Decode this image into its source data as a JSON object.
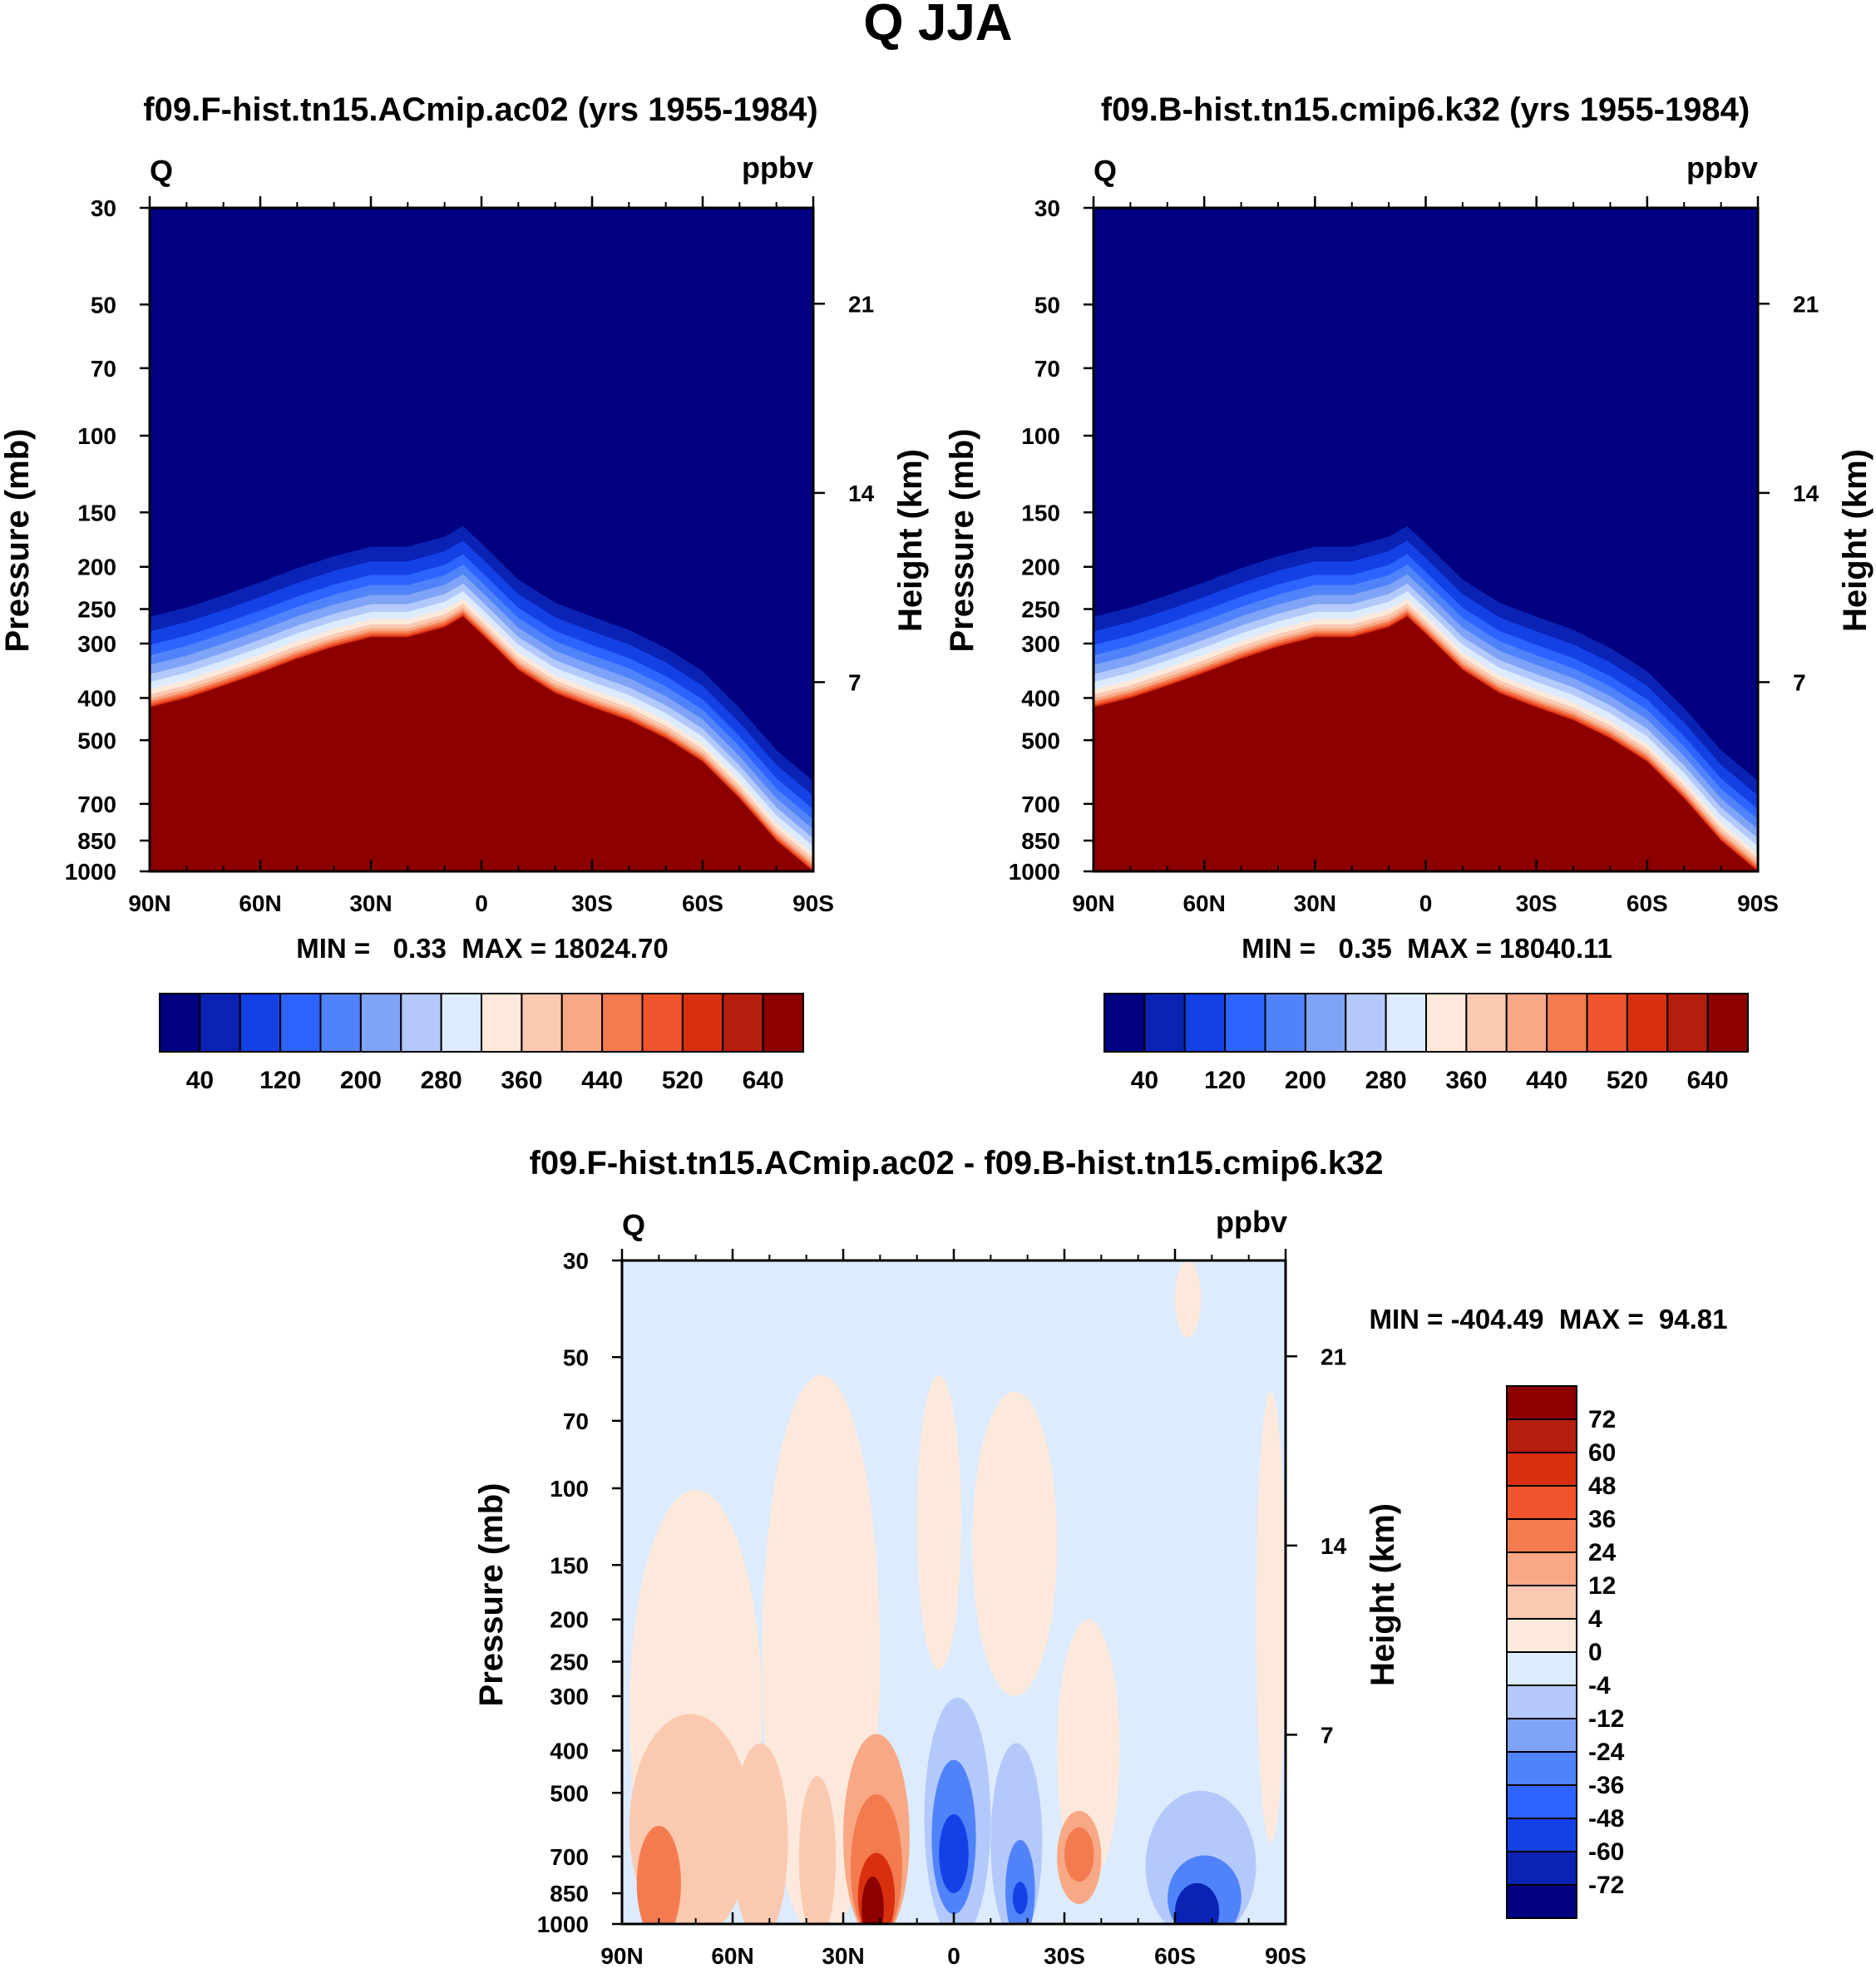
{
  "figure": {
    "title": "Q JJA"
  },
  "colors": {
    "abs_scale": [
      "#000080",
      "#0a23b4",
      "#1441e6",
      "#2d64ff",
      "#5083fa",
      "#7fa3f6",
      "#b3c9fb",
      "#dcebfd",
      "#fde9db",
      "#fbc9b0",
      "#f8a885",
      "#f47b50",
      "#f0542d",
      "#d8300f",
      "#b51d0d",
      "#8c0000"
    ],
    "diff_scale": [
      "#000080",
      "#0a23b4",
      "#1441e6",
      "#2d64ff",
      "#5083fa",
      "#7fa3f6",
      "#b3c9fb",
      "#dcebfd",
      "#fde9db",
      "#fbc9b0",
      "#f8a885",
      "#f47b50",
      "#f0542d",
      "#d8300f",
      "#b51d0d",
      "#8c0000"
    ]
  },
  "chart_data": [
    {
      "type": "heatmap",
      "title": "f09.F-hist.tn15.ACmip.ac02 (yrs 1955-1984)",
      "left_label": "Q",
      "right_label": "ppbv",
      "ylabel": "Pressure (mb)",
      "ylabel_right": "Height (km)",
      "x_ticks": [
        "90N",
        "60N",
        "30N",
        "0",
        "30S",
        "60S",
        "90S"
      ],
      "x_values": [
        90,
        60,
        30,
        0,
        -30,
        -60,
        -90
      ],
      "y_ticks": [
        "30",
        "50",
        "70",
        "100",
        "150",
        "200",
        "250",
        "300",
        "400",
        "500",
        "700",
        "850",
        "1000"
      ],
      "y_values": [
        30,
        50,
        70,
        100,
        150,
        200,
        250,
        300,
        400,
        500,
        700,
        850,
        1000
      ],
      "y_right_ticks": [
        "21",
        "14",
        "7"
      ],
      "y_right_values": [
        21,
        14,
        7
      ],
      "ylim": [
        30,
        1000
      ],
      "xlim": [
        90,
        -90
      ],
      "stats": "MIN =   0.33  MAX = 18024.70",
      "min": 0.33,
      "max": 18024.7,
      "colorbar_labels": [
        "40",
        "120",
        "200",
        "280",
        "360",
        "440",
        "520",
        "640"
      ],
      "colorbar_levels": [
        0,
        40,
        80,
        120,
        160,
        200,
        240,
        280,
        320,
        360,
        400,
        440,
        480,
        520,
        560,
        640
      ],
      "interface_pressure": {
        "latitude": [
          90,
          80,
          70,
          60,
          50,
          40,
          30,
          20,
          10,
          5,
          0,
          -10,
          -20,
          -30,
          -40,
          -50,
          -60,
          -70,
          -80,
          -90
        ],
        "pressure_mb": [
          420,
          400,
          375,
          350,
          325,
          305,
          290,
          290,
          275,
          260,
          285,
          345,
          390,
          420,
          450,
          495,
          560,
          680,
          850,
          1000
        ]
      }
    },
    {
      "type": "heatmap",
      "title": "f09.B-hist.tn15.cmip6.k32 (yrs 1955-1984)",
      "left_label": "Q",
      "right_label": "ppbv",
      "ylabel": "Pressure (mb)",
      "ylabel_right": "Height (km)",
      "x_ticks": [
        "90N",
        "60N",
        "30N",
        "0",
        "30S",
        "60S",
        "90S"
      ],
      "x_values": [
        90,
        60,
        30,
        0,
        -30,
        -60,
        -90
      ],
      "y_ticks": [
        "30",
        "50",
        "70",
        "100",
        "150",
        "200",
        "250",
        "300",
        "400",
        "500",
        "700",
        "850",
        "1000"
      ],
      "y_values": [
        30,
        50,
        70,
        100,
        150,
        200,
        250,
        300,
        400,
        500,
        700,
        850,
        1000
      ],
      "y_right_ticks": [
        "21",
        "14",
        "7"
      ],
      "y_right_values": [
        21,
        14,
        7
      ],
      "ylim": [
        30,
        1000
      ],
      "xlim": [
        90,
        -90
      ],
      "stats": "MIN =   0.35  MAX = 18040.11",
      "min": 0.35,
      "max": 18040.11,
      "colorbar_labels": [
        "40",
        "120",
        "200",
        "280",
        "360",
        "440",
        "520",
        "640"
      ],
      "colorbar_levels": [
        0,
        40,
        80,
        120,
        160,
        200,
        240,
        280,
        320,
        360,
        400,
        440,
        480,
        520,
        560,
        640
      ],
      "interface_pressure": {
        "latitude": [
          90,
          80,
          70,
          60,
          50,
          40,
          30,
          20,
          10,
          5,
          0,
          -10,
          -20,
          -30,
          -40,
          -50,
          -60,
          -70,
          -80,
          -90
        ],
        "pressure_mb": [
          420,
          400,
          375,
          350,
          325,
          305,
          290,
          290,
          275,
          260,
          285,
          345,
          390,
          420,
          450,
          495,
          560,
          680,
          850,
          1000
        ]
      }
    },
    {
      "type": "heatmap",
      "title": "f09.F-hist.tn15.ACmip.ac02 - f09.B-hist.tn15.cmip6.k32",
      "left_label": "Q",
      "right_label": "ppbv",
      "ylabel": "Pressure (mb)",
      "ylabel_right": "Height (km)",
      "x_ticks": [
        "90N",
        "60N",
        "30N",
        "0",
        "30S",
        "60S",
        "90S"
      ],
      "x_values": [
        90,
        60,
        30,
        0,
        -30,
        -60,
        -90
      ],
      "y_ticks": [
        "30",
        "50",
        "70",
        "100",
        "150",
        "200",
        "250",
        "300",
        "400",
        "500",
        "700",
        "850",
        "1000"
      ],
      "y_values": [
        30,
        50,
        70,
        100,
        150,
        200,
        250,
        300,
        400,
        500,
        700,
        850,
        1000
      ],
      "y_right_ticks": [
        "21",
        "14",
        "7"
      ],
      "y_right_values": [
        21,
        14,
        7
      ],
      "ylim": [
        30,
        1000
      ],
      "xlim": [
        90,
        -90
      ],
      "stats": "MIN = -404.49  MAX =  94.81",
      "min": -404.49,
      "max": 94.81,
      "colorbar_labels": [
        "72",
        "60",
        "48",
        "36",
        "24",
        "12",
        "4",
        "0",
        "-4",
        "-12",
        "-24",
        "-36",
        "-48",
        "-60",
        "-72"
      ],
      "background_value": -2,
      "regions": [
        {
          "lat": [
            88,
            52
          ],
          "p": [
            110,
            1000
          ],
          "value": 2
        },
        {
          "lat": [
            52,
            20
          ],
          "p": [
            60,
            1000
          ],
          "value": 2
        },
        {
          "lat": [
            10,
            -2
          ],
          "p": [
            55,
            260
          ],
          "value": 2
        },
        {
          "lat": [
            -5,
            -28
          ],
          "p": [
            60,
            300
          ],
          "value": 2
        },
        {
          "lat": [
            -28,
            -45
          ],
          "p": [
            200,
            800
          ],
          "value": 2
        },
        {
          "lat": [
            -82,
            -90
          ],
          "p": [
            60,
            650
          ],
          "value": 2
        },
        {
          "lat": [
            -60,
            -67
          ],
          "p": [
            30,
            45
          ],
          "value": 2
        },
        {
          "lat": [
            88,
            55
          ],
          "p": [
            360,
            1000
          ],
          "value": 8
        },
        {
          "lat": [
            60,
            45
          ],
          "p": [
            420,
            1000
          ],
          "value": 10
        },
        {
          "lat": [
            42,
            32
          ],
          "p": [
            500,
            1000
          ],
          "value": 8
        },
        {
          "lat": [
            30,
            12
          ],
          "p": [
            400,
            1000
          ],
          "value": 14
        },
        {
          "lat": [
            28,
            14
          ],
          "p": [
            550,
            1000
          ],
          "value": 30
        },
        {
          "lat": [
            26,
            16
          ],
          "p": [
            750,
            1000
          ],
          "value": 55
        },
        {
          "lat": [
            25,
            19
          ],
          "p": [
            850,
            1000
          ],
          "value": 78
        },
        {
          "lat": [
            86,
            74
          ],
          "p": [
            650,
            1000
          ],
          "value": 28
        },
        {
          "lat": [
            -28,
            -40
          ],
          "p": [
            550,
            900
          ],
          "value": 14
        },
        {
          "lat": [
            -30,
            -38
          ],
          "p": [
            600,
            800
          ],
          "value": 28
        },
        {
          "lat": [
            8,
            -10
          ],
          "p": [
            330,
            1000
          ],
          "value": -10
        },
        {
          "lat": [
            6,
            -6
          ],
          "p": [
            420,
            950
          ],
          "value": -28
        },
        {
          "lat": [
            4,
            -4
          ],
          "p": [
            560,
            850
          ],
          "value": -50
        },
        {
          "lat": [
            -10,
            -24
          ],
          "p": [
            420,
            1000
          ],
          "value": -10
        },
        {
          "lat": [
            -14,
            -22
          ],
          "p": [
            700,
            1000
          ],
          "value": -30
        },
        {
          "lat": [
            -16,
            -20
          ],
          "p": [
            800,
            950
          ],
          "value": -55
        },
        {
          "lat": [
            -52,
            -82
          ],
          "p": [
            540,
            1000
          ],
          "value": -10
        },
        {
          "lat": [
            -58,
            -78
          ],
          "p": [
            760,
            1000
          ],
          "value": -28
        },
        {
          "lat": [
            -60,
            -72
          ],
          "p": [
            880,
            1000
          ],
          "value": -65
        }
      ]
    }
  ]
}
